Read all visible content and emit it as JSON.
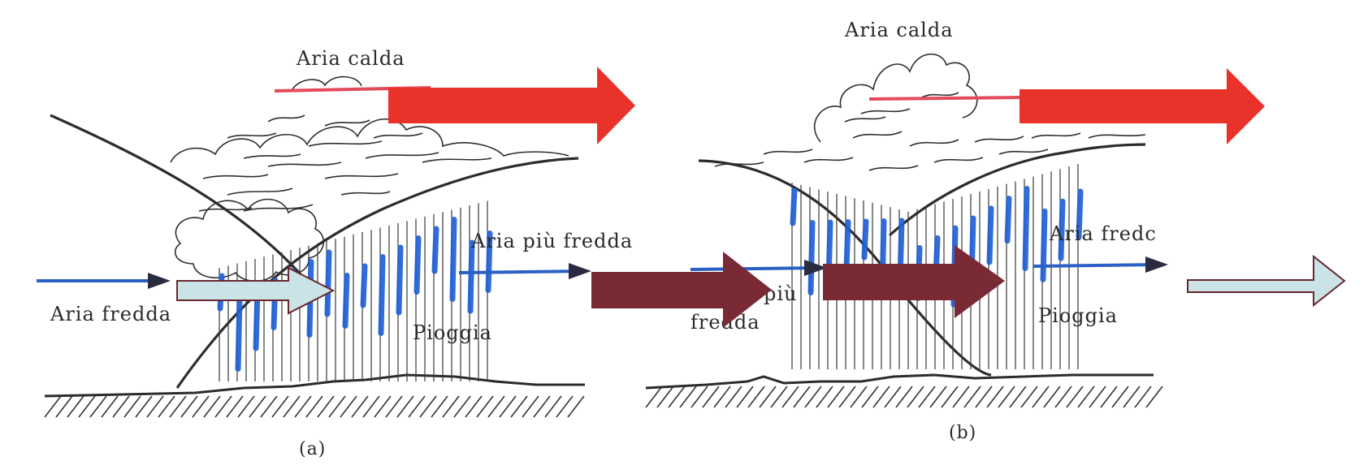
{
  "panel_a": {
    "label_warm_air": "Aria calda",
    "label_colder_air": "Aria più fredda",
    "label_cold_air": "Aria fredda",
    "label_rain": "Pioggia",
    "caption": "(a)"
  },
  "panel_b": {
    "label_warm_air": "Aria calda",
    "label_cold_air_cut": "Aria fredc",
    "label_colder_air_partial": "più",
    "label_cold_air_partial": "fredda",
    "label_rain": "Pioggia",
    "caption": "(b)"
  },
  "colors": {
    "warm_arrow": "#e8322a",
    "cold_arrow": "#c9e3e6",
    "dark_arrow": "#7a2a35",
    "rain": "#1f5fd6"
  }
}
